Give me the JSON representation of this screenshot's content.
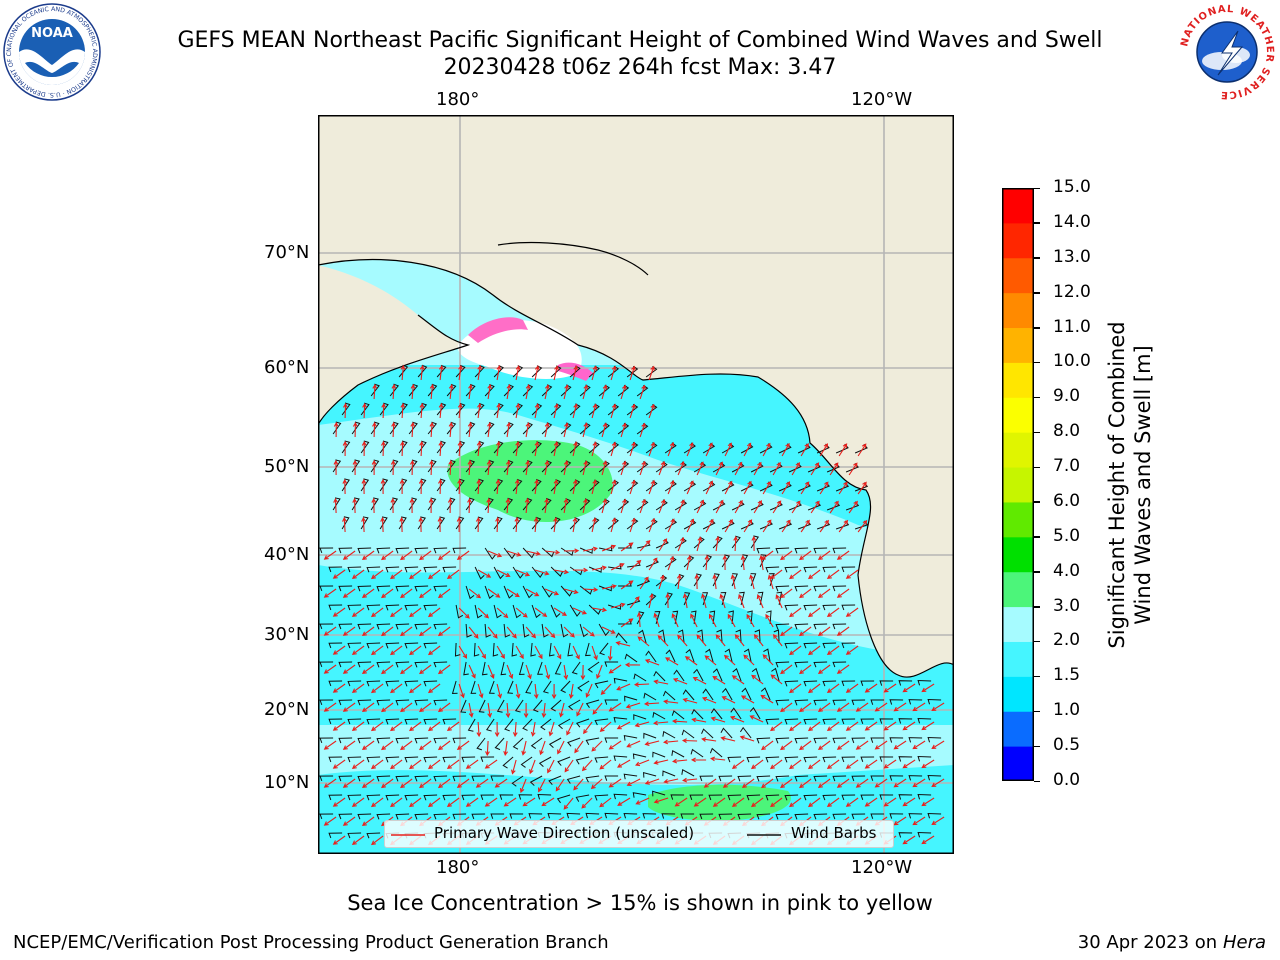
{
  "title": {
    "line1": "GEFS MEAN Northeast Pacific Significant Height of Combined Wind Waves and Swell",
    "line2": "20230428 t06z 264h fcst   Max: 3.47"
  },
  "map": {
    "lon_labels_top": [
      "180°",
      "120°W"
    ],
    "lon_labels_bottom": [
      "180°",
      "120°W"
    ],
    "lat_labels": [
      "70°N",
      "60°N",
      "50°N",
      "40°N",
      "30°N",
      "20°N",
      "10°N"
    ],
    "legend": {
      "wave_label": "Primary Wave Direction (unscaled)",
      "barb_label": "Wind Barbs",
      "wave_color": "#e8201c",
      "barb_color": "#111111"
    }
  },
  "colorbar": {
    "label_line1": "Significant Height of Combined",
    "label_line2": "Wind Waves and Swell [m]",
    "ticks": [
      "15.0",
      "14.0",
      "13.0",
      "12.0",
      "11.0",
      "10.0",
      "9.0",
      "8.0",
      "7.0",
      "6.0",
      "5.0",
      "4.0",
      "3.0",
      "2.0",
      "1.5",
      "1.0",
      "0.5",
      "0.0"
    ],
    "colors_bottom_to_top": [
      "#0000ff",
      "#0a6cff",
      "#00e6ff",
      "#45f5ff",
      "#a6fbff",
      "#4cf57a",
      "#00e000",
      "#60ea00",
      "#c6f500",
      "#e0f500",
      "#fbff00",
      "#ffe600",
      "#ffb300",
      "#ff8a00",
      "#ff5a00",
      "#ff2600",
      "#ff0000"
    ]
  },
  "ocean_colors": {
    "land": "#efecdb",
    "wave_low": "#a6fbff",
    "wave_mid": "#45f5ff",
    "wave_high": "#4cf57a"
  },
  "logos": {
    "noaa_text": "NOAA",
    "noaa_ring": "NATIONAL OCEANIC AND ATMOSPHERIC ADMINISTRATION · U.S. DEPARTMENT OF COMMERCE",
    "nws_ring": "NATIONAL WEATHER SERVICE"
  },
  "notes": {
    "ice": "Sea Ice Concentration > 15% is shown in pink to yellow"
  },
  "footer": {
    "left": "NCEP/EMC/Verification Post Processing Product Generation Branch",
    "date": "30 Apr 2023 on ",
    "machine": "Hera"
  }
}
